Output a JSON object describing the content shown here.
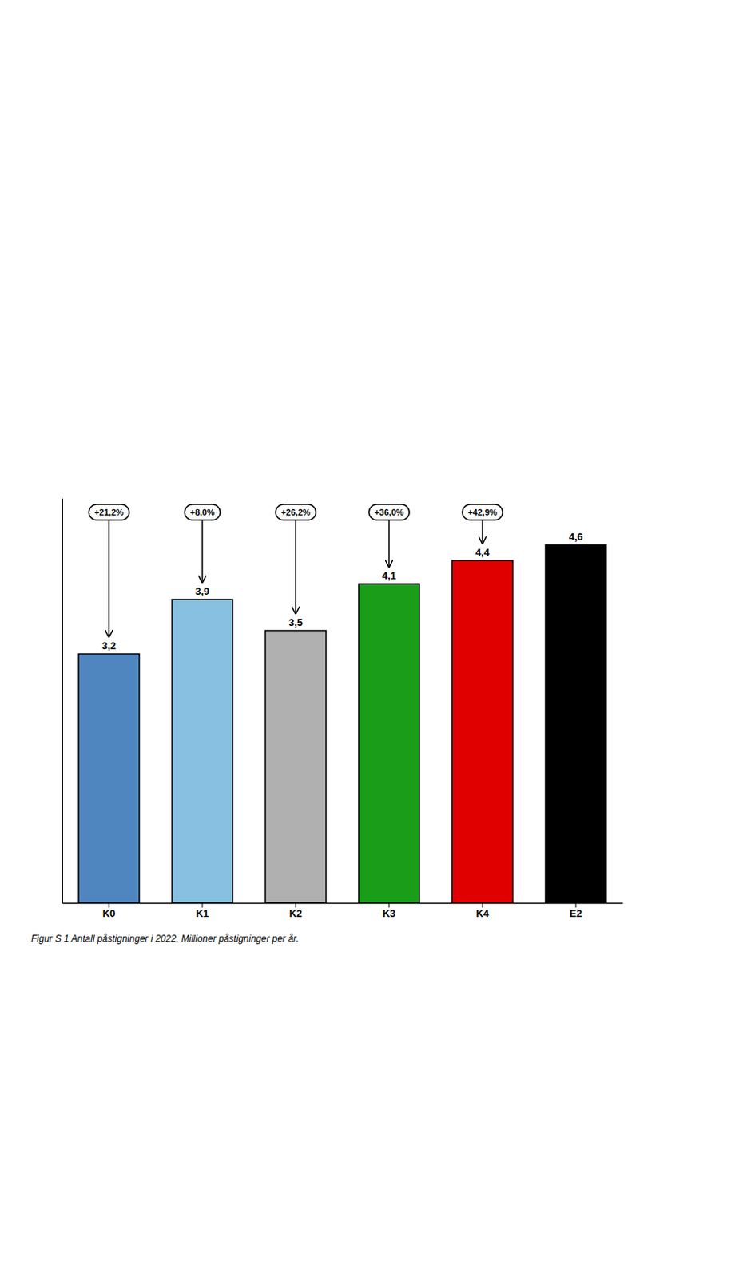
{
  "chart_data": {
    "type": "bar",
    "title": "Figur S 1 Antall påstigninger i 2022. Millioner påstigninger per år.",
    "categories": [
      "K0",
      "K1",
      "K2",
      "K3",
      "K4",
      "E2"
    ],
    "values": [
      3.2,
      3.9,
      3.5,
      4.1,
      4.4,
      4.6
    ],
    "value_labels": [
      "3,2",
      "3,9",
      "3,5",
      "4,1",
      "4,4",
      "4,6"
    ],
    "colors": [
      "#4f86c0",
      "#87c0e0",
      "#b0b0b0",
      "#1a9e1a",
      "#e00000",
      "#000000"
    ],
    "ylim": [
      0,
      5.2
    ],
    "data_labels": true,
    "tick_labels": "x",
    "grid": false,
    "annotations": [
      {
        "text": "+21,2%",
        "x": "K0"
      },
      {
        "text": "+8,0%",
        "x": "K1"
      },
      {
        "text": "+26,2%",
        "x": "K2"
      },
      {
        "text": "+36,0%",
        "x": "K3"
      },
      {
        "text": "+42,9%",
        "x": "K4"
      }
    ]
  }
}
